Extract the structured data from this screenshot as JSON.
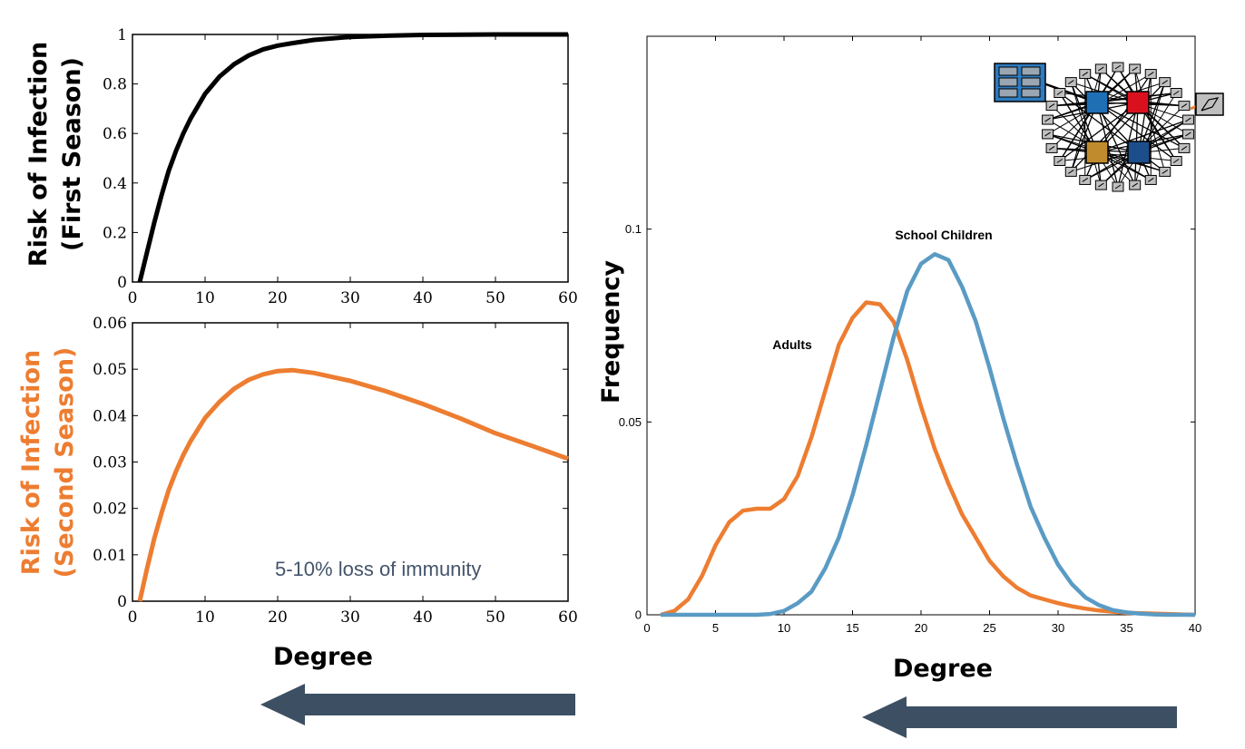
{
  "chart_data": [
    {
      "type": "line",
      "ylabel_lines": [
        "Risk of Infection",
        "(First Season)"
      ],
      "xlabel": "",
      "xlim": [
        0,
        60
      ],
      "ylim": [
        0,
        1
      ],
      "xticks": [
        "0",
        "10",
        "20",
        "30",
        "40",
        "50",
        "60"
      ],
      "yticks": [
        "0",
        "0.2",
        "0.4",
        "0.6",
        "0.8",
        "1"
      ],
      "series": [
        {
          "color": "#000000",
          "x": [
            1,
            2,
            3,
            4,
            5,
            6,
            7,
            8,
            9,
            10,
            12,
            14,
            16,
            18,
            20,
            22,
            25,
            30,
            35,
            40,
            50,
            60
          ],
          "y": [
            0,
            0.12,
            0.24,
            0.35,
            0.45,
            0.53,
            0.6,
            0.66,
            0.71,
            0.76,
            0.83,
            0.88,
            0.915,
            0.94,
            0.955,
            0.965,
            0.978,
            0.99,
            0.995,
            0.998,
            1.0,
            1.0
          ]
        }
      ],
      "grid": false
    },
    {
      "type": "line",
      "ylabel_lines": [
        "Risk of Infection",
        "(Second Season)"
      ],
      "xlabel": "Degree",
      "xlim": [
        0,
        60
      ],
      "ylim": [
        0,
        0.06
      ],
      "xticks": [
        "0",
        "10",
        "20",
        "30",
        "40",
        "50",
        "60"
      ],
      "yticks": [
        "0",
        "0.01",
        "0.02",
        "0.03",
        "0.04",
        "0.05",
        "0.06"
      ],
      "annotation": "5-10% loss of immunity",
      "series": [
        {
          "color": "#ed7d31",
          "x": [
            1,
            2,
            3,
            4,
            5,
            6,
            7,
            8,
            9,
            10,
            12,
            14,
            16,
            18,
            20,
            22,
            25,
            30,
            35,
            40,
            45,
            50,
            55,
            60
          ],
          "y": [
            0,
            0.007,
            0.0135,
            0.019,
            0.024,
            0.028,
            0.0315,
            0.0345,
            0.037,
            0.0395,
            0.043,
            0.0458,
            0.0477,
            0.0489,
            0.0496,
            0.0498,
            0.0492,
            0.0475,
            0.0452,
            0.0425,
            0.0395,
            0.0362,
            0.0335,
            0.0307
          ]
        }
      ],
      "grid": false
    },
    {
      "type": "line",
      "ylabel": "Frequency",
      "xlabel": "Degree",
      "xlim": [
        0,
        40
      ],
      "ylim": [
        0,
        0.15
      ],
      "xticks": [
        "0",
        "5",
        "10",
        "15",
        "20",
        "25",
        "30",
        "35",
        "40"
      ],
      "yticks": [
        "0",
        "0.05",
        "0.1"
      ],
      "series": [
        {
          "name": "Adults",
          "color": "#ed7d31",
          "x": [
            1,
            2,
            3,
            4,
            5,
            6,
            7,
            8,
            9,
            10,
            11,
            12,
            13,
            14,
            15,
            16,
            17,
            18,
            19,
            20,
            21,
            22,
            23,
            24,
            25,
            26,
            27,
            28,
            29,
            30,
            31,
            32,
            33,
            34,
            35,
            36,
            37,
            38,
            39,
            40
          ],
          "y": [
            0,
            0.001,
            0.004,
            0.01,
            0.018,
            0.024,
            0.027,
            0.0275,
            0.0275,
            0.03,
            0.036,
            0.046,
            0.058,
            0.07,
            0.077,
            0.081,
            0.0805,
            0.076,
            0.066,
            0.054,
            0.043,
            0.034,
            0.026,
            0.02,
            0.014,
            0.01,
            0.007,
            0.005,
            0.004,
            0.003,
            0.0022,
            0.0016,
            0.0011,
            0.0008,
            0.0005,
            0.0004,
            0.0003,
            0.0002,
            0.0001,
            0
          ]
        },
        {
          "name": "School Children",
          "color": "#5a9bc4",
          "x": [
            1,
            2,
            3,
            4,
            5,
            6,
            7,
            8,
            9,
            10,
            11,
            12,
            13,
            14,
            15,
            16,
            17,
            18,
            19,
            20,
            21,
            22,
            23,
            24,
            25,
            26,
            27,
            28,
            29,
            30,
            31,
            32,
            33,
            34,
            35,
            36,
            37,
            38,
            39,
            40
          ],
          "y": [
            0,
            0,
            0,
            0,
            0,
            0,
            0,
            0,
            0.0002,
            0.001,
            0.003,
            0.006,
            0.012,
            0.02,
            0.031,
            0.044,
            0.058,
            0.072,
            0.084,
            0.091,
            0.0935,
            0.092,
            0.085,
            0.076,
            0.064,
            0.051,
            0.039,
            0.028,
            0.02,
            0.013,
            0.008,
            0.0045,
            0.0025,
            0.0012,
            0.0006,
            0.0003,
            0.0001,
            0,
            0,
            0
          ]
        }
      ],
      "grid": false,
      "inset": "network-diagram"
    }
  ],
  "colors": {
    "arrow": "#3d4f63",
    "annotation": "#44546a",
    "orange": "#ed7d31",
    "blue_node": "#1f6fb5",
    "red_node": "#d9111f",
    "gold_node": "#c08b2c",
    "navy_node": "#1d4e8c"
  }
}
